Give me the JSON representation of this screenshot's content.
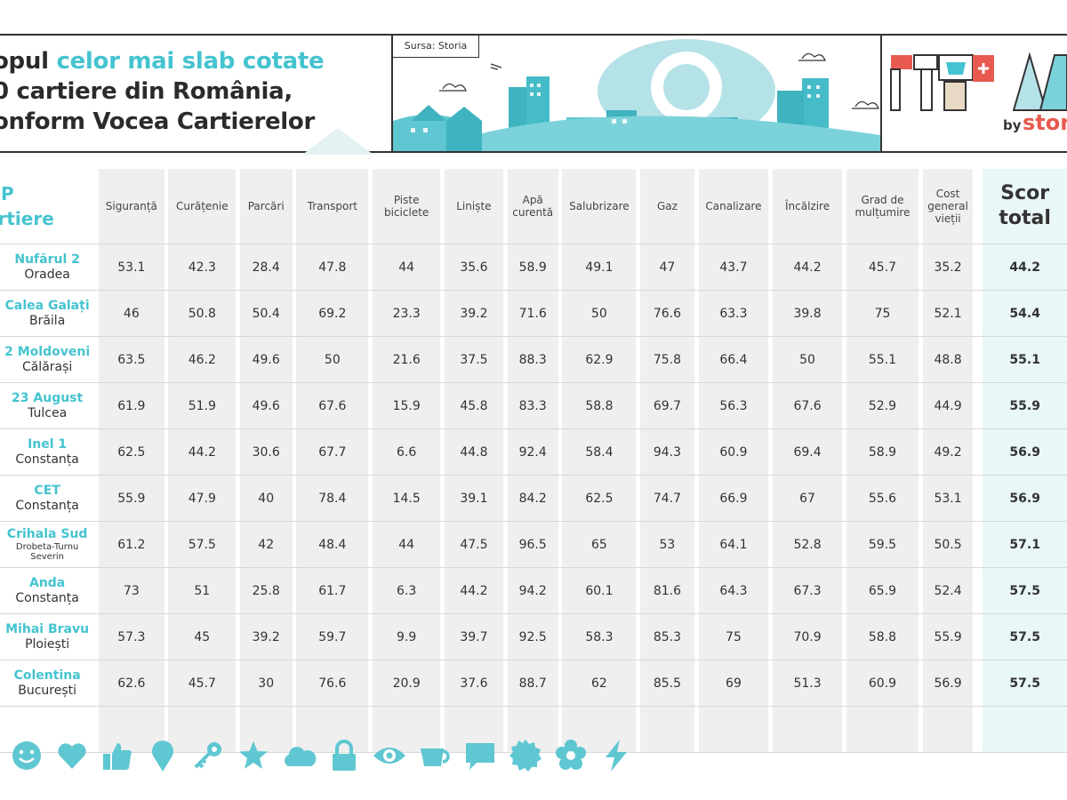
{
  "header": {
    "title_line1_pre": "opul ",
    "title_line1_accent": "celor mai slab cotate",
    "title_line2": "0 cartiere din România,",
    "title_line3": "onform Vocea Cartierelor",
    "source": "Sursa: Storia",
    "brand_by": "by",
    "brand_name": "stor"
  },
  "table": {
    "top_head_line1": "OP",
    "top_head_line2": "artiere",
    "columns": [
      "Siguranță",
      "Curățenie",
      "Parcări",
      "Transport",
      "Piste biciclete",
      "Liniște",
      "Apă curentă",
      "Salubrizare",
      "Gaz",
      "Canalizare",
      "Încălzire",
      "Grad de mulțumire",
      "Cost general vieții"
    ],
    "score_head_line1": "Scor",
    "score_head_line2": "total",
    "rows": [
      {
        "name": "Nufărul 2",
        "city": "Oradea",
        "values": [
          "53.1",
          "42.3",
          "28.4",
          "47.8",
          "44",
          "35.6",
          "58.9",
          "49.1",
          "47",
          "43.7",
          "44.2",
          "45.7",
          "35.2"
        ],
        "score": "44.2"
      },
      {
        "name": "Calea Galați",
        "city": "Brăila",
        "values": [
          "46",
          "50.8",
          "50.4",
          "69.2",
          "23.3",
          "39.2",
          "71.6",
          "50",
          "76.6",
          "63.3",
          "39.8",
          "75",
          "52.1"
        ],
        "score": "54.4"
      },
      {
        "name": "2 Moldoveni",
        "city": "Călărași",
        "values": [
          "63.5",
          "46.2",
          "49.6",
          "50",
          "21.6",
          "37.5",
          "88.3",
          "62.9",
          "75.8",
          "66.4",
          "50",
          "55.1",
          "48.8"
        ],
        "score": "55.1"
      },
      {
        "name": "23 August",
        "city": "Tulcea",
        "values": [
          "61.9",
          "51.9",
          "49.6",
          "67.6",
          "15.9",
          "45.8",
          "83.3",
          "58.8",
          "69.7",
          "56.3",
          "67.6",
          "52.9",
          "44.9"
        ],
        "score": "55.9"
      },
      {
        "name": "Inel 1",
        "city": "Constanța",
        "values": [
          "62.5",
          "44.2",
          "30.6",
          "67.7",
          "6.6",
          "44.8",
          "92.4",
          "58.4",
          "94.3",
          "60.9",
          "69.4",
          "58.9",
          "49.2"
        ],
        "score": "56.9"
      },
      {
        "name": "CET",
        "city": "Constanța",
        "values": [
          "55.9",
          "47.9",
          "40",
          "78.4",
          "14.5",
          "39.1",
          "84.2",
          "62.5",
          "74.7",
          "66.9",
          "67",
          "55.6",
          "53.1"
        ],
        "score": "56.9"
      },
      {
        "name": "Crihala Sud",
        "city": "Drobeta-Turnu Severin",
        "values": [
          "61.2",
          "57.5",
          "42",
          "48.4",
          "44",
          "47.5",
          "96.5",
          "65",
          "53",
          "64.1",
          "52.8",
          "59.5",
          "50.5"
        ],
        "score": "57.1"
      },
      {
        "name": "Anda",
        "city": "Constanța",
        "values": [
          "73",
          "51",
          "25.8",
          "61.7",
          "6.3",
          "44.2",
          "94.2",
          "60.1",
          "81.6",
          "64.3",
          "67.3",
          "65.9",
          "52.4"
        ],
        "score": "57.5"
      },
      {
        "name": "Mihai Bravu",
        "city": "Ploiești",
        "values": [
          "57.3",
          "45",
          "39.2",
          "59.7",
          "9.9",
          "39.7",
          "92.5",
          "58.3",
          "85.3",
          "75",
          "70.9",
          "58.8",
          "55.9"
        ],
        "score": "57.5"
      },
      {
        "name": "Colentina",
        "city": "București",
        "values": [
          "62.6",
          "45.7",
          "30",
          "76.6",
          "20.9",
          "37.6",
          "88.7",
          "62",
          "85.5",
          "69",
          "51.3",
          "60.9",
          "56.9"
        ],
        "score": "57.5"
      }
    ]
  },
  "icons": [
    "smiley-icon",
    "heart-icon",
    "thumbs-up-icon",
    "map-pin-icon",
    "key-icon",
    "star-icon",
    "cloud-icon",
    "lock-icon",
    "eye-icon",
    "cup-icon",
    "speech-bubble-icon",
    "badge-icon",
    "flower-icon",
    "lightning-icon"
  ],
  "colors": {
    "accent": "#45c3d0",
    "score_bg": "#eaf7f8",
    "shade": "#efefef",
    "brand_red": "#e85a4f"
  }
}
